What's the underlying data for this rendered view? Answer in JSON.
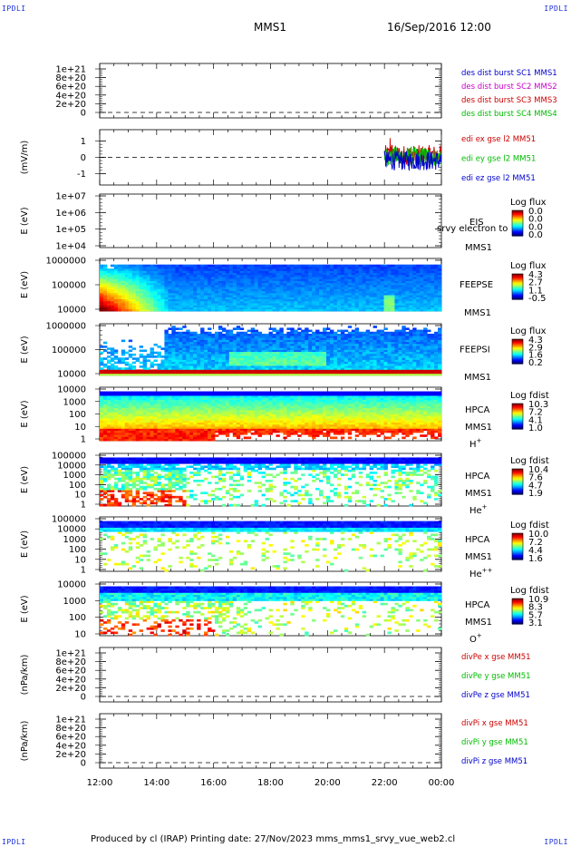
{
  "corners": {
    "tl": "IPDLI",
    "tr": "IPDLI",
    "bl": "IPDLI",
    "br": "IPDLI"
  },
  "header": {
    "spacecraft": "MMS1",
    "datetime": "16/Sep/2016 12:00"
  },
  "footer": {
    "text": "Produced by cl (IRAP)   Printing date: 27/Nov/2023   mms_mms1_srvy_vue_web2.cl"
  },
  "chart_data": {
    "type": "multi-panel time series / spectrogram",
    "time_axis": {
      "start": "12:00",
      "end": "00:00",
      "ticks": [
        "12:00",
        "14:00",
        "16:00",
        "18:00",
        "20:00",
        "22:00",
        "00:00"
      ]
    },
    "panels": [
      {
        "id": "des-dist",
        "type": "line",
        "ylabel": "",
        "yticks": [
          "1e+21",
          "8e+20",
          "6e+20",
          "4e+20",
          "2e+20",
          "0"
        ],
        "legend": [
          {
            "name": "des dist burst SC1 MMS1",
            "color": "#0000cc"
          },
          {
            "name": "des dist burst SC2 MMS2",
            "color": "#cc00cc"
          },
          {
            "name": "des dist burst SC3 MMS3",
            "color": "#cc0000"
          },
          {
            "name": "des dist burst SC4 MMS4",
            "color": "#00bb00"
          }
        ],
        "zero_line": true
      },
      {
        "id": "edi",
        "type": "line",
        "ylabel": "(mV/m)",
        "yticks": [
          "1",
          "0",
          "-1"
        ],
        "ylim": [
          -1.7,
          1.7
        ],
        "legend": [
          {
            "name": "edi ex gse l2 MM51",
            "color": "#cc0000"
          },
          {
            "name": "edi ey gse l2 MM51",
            "color": "#00bb00"
          },
          {
            "name": "edi ez gse l2 MM51",
            "color": "#0000cc"
          }
        ],
        "data_from": "22:00",
        "data_to": "00:00",
        "zero_line": true
      },
      {
        "id": "eis",
        "type": "spectrogram",
        "ylabel": "E (eV)",
        "yticks": [
          "1e+07",
          "1e+06",
          "1e+05",
          "1e+04"
        ],
        "labels": [
          "EIS",
          "MMS1"
        ],
        "overlay_text": "srvy electron to",
        "colorbar": {
          "title": "Log flux",
          "ticks": [
            "0.0",
            "0.0",
            "0.0",
            "0.0"
          ]
        }
      },
      {
        "id": "feepse",
        "type": "spectrogram",
        "ylabel": "E (eV)",
        "yticks": [
          "1000000",
          "100000",
          "10000"
        ],
        "labels": [
          "FEEPSE",
          "MMS1"
        ],
        "colorbar": {
          "title": "Log flux",
          "ticks": [
            "4.3",
            "2.7",
            "1.1",
            "-0.5"
          ]
        }
      },
      {
        "id": "feepsi",
        "type": "spectrogram",
        "ylabel": "E (eV)",
        "yticks": [
          "1000000",
          "100000",
          "10000"
        ],
        "labels": [
          "FEEPSI",
          "MMS1"
        ],
        "colorbar": {
          "title": "Log flux",
          "ticks": [
            "4.3",
            "2.9",
            "1.6",
            "0.2"
          ]
        }
      },
      {
        "id": "hpca-h",
        "type": "spectrogram",
        "ylabel": "E (eV)",
        "yticks": [
          "10000",
          "1000",
          "100",
          "10",
          "1"
        ],
        "labels": [
          "HPCA",
          "MMS1"
        ],
        "species": "H",
        "charge": "+",
        "colorbar": {
          "title": "Log fdist",
          "ticks": [
            "10.3",
            "7.2",
            "4.1",
            "1.0"
          ]
        }
      },
      {
        "id": "hpca-he",
        "type": "spectrogram",
        "ylabel": "E (eV)",
        "yticks": [
          "100000",
          "10000",
          "1000",
          "100",
          "10",
          "1"
        ],
        "labels": [
          "HPCA",
          "MMS1"
        ],
        "species": "He",
        "charge": "+",
        "colorbar": {
          "title": "Log fdist",
          "ticks": [
            "10.4",
            "7.6",
            "4.7",
            "1.9"
          ]
        }
      },
      {
        "id": "hpca-hepp",
        "type": "spectrogram",
        "ylabel": "E (eV)",
        "yticks": [
          "100000",
          "10000",
          "1000",
          "100",
          "10",
          "1"
        ],
        "labels": [
          "HPCA",
          "MMS1"
        ],
        "species": "He",
        "charge": "++",
        "colorbar": {
          "title": "Log fdist",
          "ticks": [
            "10.0",
            "7.2",
            "4.4",
            "1.6"
          ]
        }
      },
      {
        "id": "hpca-o",
        "type": "spectrogram",
        "ylabel": "E (eV)",
        "yticks": [
          "10000",
          "1000",
          "100",
          "10"
        ],
        "labels": [
          "HPCA",
          "MMS1"
        ],
        "species": "O",
        "charge": "+",
        "colorbar": {
          "title": "Log fdist",
          "ticks": [
            "10.9",
            "8.3",
            "5.7",
            "3.1"
          ]
        }
      },
      {
        "id": "divpe",
        "type": "line",
        "ylabel": "(nPa/km)",
        "yticks": [
          "1e+21",
          "8e+20",
          "6e+20",
          "4e+20",
          "2e+20",
          "0"
        ],
        "legend": [
          {
            "name": "divPe x gse MM51",
            "color": "#cc0000"
          },
          {
            "name": "divPe y gse MM51",
            "color": "#00bb00"
          },
          {
            "name": "divPe z gse MM51",
            "color": "#0000cc"
          }
        ],
        "zero_line": true
      },
      {
        "id": "divpi",
        "type": "line",
        "ylabel": "(nPa/km)",
        "yticks": [
          "1e+21",
          "8e+20",
          "6e+20",
          "4e+20",
          "2e+20",
          "0"
        ],
        "legend": [
          {
            "name": "divPi x gse MM51",
            "color": "#cc0000"
          },
          {
            "name": "divPi y gse MM51",
            "color": "#00bb00"
          },
          {
            "name": "divPi z gse MM51",
            "color": "#0000cc"
          }
        ],
        "zero_line": true
      }
    ]
  }
}
